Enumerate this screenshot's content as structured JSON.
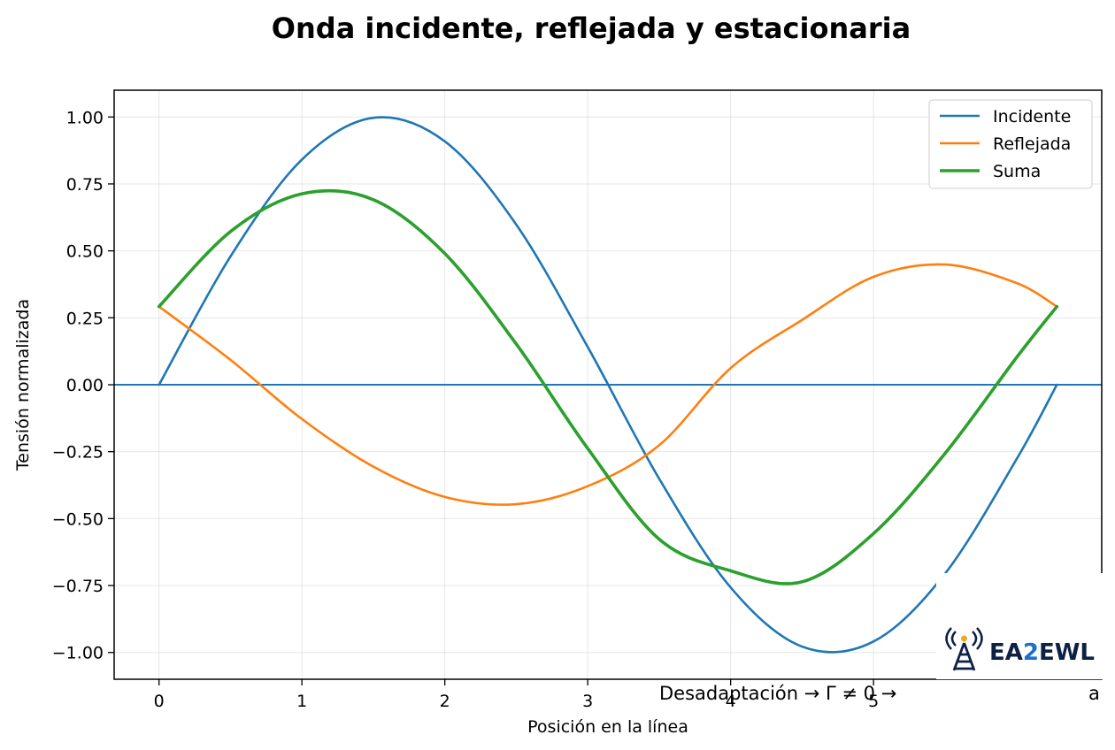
{
  "chart_data": {
    "type": "line",
    "title": "Onda incidente, reflejada y estacionaria",
    "xlabel": "Posición en la línea",
    "ylabel": "Tensión normalizada",
    "xlim": [
      -0.314,
      6.597
    ],
    "ylim": [
      -1.1,
      1.1
    ],
    "x_ticks": [
      0,
      1,
      2,
      3,
      4,
      5
    ],
    "y_ticks": [
      1.0,
      0.75,
      0.5,
      0.25,
      0.0,
      -0.25,
      -0.5,
      -0.75,
      -1.0
    ],
    "y_tick_labels": [
      "1.00",
      "0.75",
      "0.50",
      "0.25",
      "0.00",
      "−0.25",
      "−0.50",
      "−0.75",
      "−1.00"
    ],
    "grid": true,
    "legend_position": "top-right",
    "hline": {
      "y": 0.0,
      "color": "#1f77b4"
    },
    "x": [
      0.0,
      0.5,
      1.0,
      1.5,
      2.0,
      2.5,
      3.0,
      3.5,
      4.0,
      4.5,
      5.0,
      5.5,
      6.0,
      6.283
    ],
    "series": [
      {
        "name": "Incidente",
        "color": "#1f77b4",
        "width": 2.6,
        "values": [
          0.0,
          0.479,
          0.841,
          0.997,
          0.909,
          0.598,
          0.141,
          -0.351,
          -0.757,
          -0.978,
          -0.959,
          -0.706,
          -0.279,
          0.0
        ]
      },
      {
        "name": "Reflejada",
        "color": "#ff7f0e",
        "width": 2.6,
        "values": [
          0.292,
          0.093,
          -0.128,
          -0.306,
          -0.419,
          -0.446,
          -0.379,
          -0.226,
          0.062,
          0.242,
          0.403,
          0.449,
          0.38,
          0.292
        ]
      },
      {
        "name": "Suma",
        "color": "#2ca02c",
        "width": 3.6,
        "values": [
          0.292,
          0.572,
          0.713,
          0.691,
          0.49,
          0.152,
          -0.238,
          -0.577,
          -0.695,
          -0.736,
          -0.556,
          -0.257,
          0.101,
          0.292
        ]
      }
    ],
    "annotation": "Desadaptación → Γ ≠ 0 →",
    "annotation_tail": "a"
  },
  "logo": {
    "text_a": "EA",
    "text_b": "2",
    "text_c": "EWL",
    "colors": {
      "navy": "#0d2145",
      "blue": "#1f6fc9",
      "orange": "#f5a623"
    }
  }
}
